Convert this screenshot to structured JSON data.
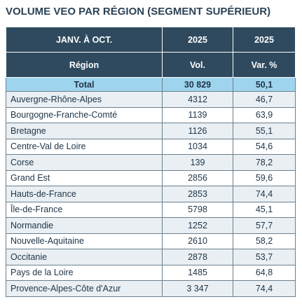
{
  "title": "VOLUME VEO PAR RÉGION (SEGMENT SUPÉRIEUR)",
  "table": {
    "header": [
      [
        "JANV. À OCT.",
        "2025",
        "2025"
      ],
      [
        "Région",
        "Vol.",
        "Var. %"
      ]
    ],
    "total": [
      "Total",
      "30 829",
      "50,1"
    ],
    "rows": [
      [
        "Auvergne-Rhône-Alpes",
        "4312",
        "46,7"
      ],
      [
        "Bourgogne-Franche-Comté",
        "1139",
        "63,9"
      ],
      [
        "Bretagne",
        "1126",
        "55,1"
      ],
      [
        "Centre-Val de Loire",
        "1034",
        "54,6"
      ],
      [
        "Corse",
        "139",
        "78,2"
      ],
      [
        "Grand Est",
        "2856",
        "59,6"
      ],
      [
        "Hauts-de-France",
        "2853",
        "74,4"
      ],
      [
        "Île-de-France",
        "5798",
        "45,1"
      ],
      [
        "Normandie",
        "1252",
        "57,7"
      ],
      [
        "Nouvelle-Aquitaine",
        "2610",
        "58,2"
      ],
      [
        "Occitanie",
        "2878",
        "53,7"
      ],
      [
        "Pays de la Loire",
        "1485",
        "64,8"
      ],
      [
        "Provence-Alpes-Côte d'Azur",
        "3 347",
        "74,4"
      ]
    ]
  }
}
